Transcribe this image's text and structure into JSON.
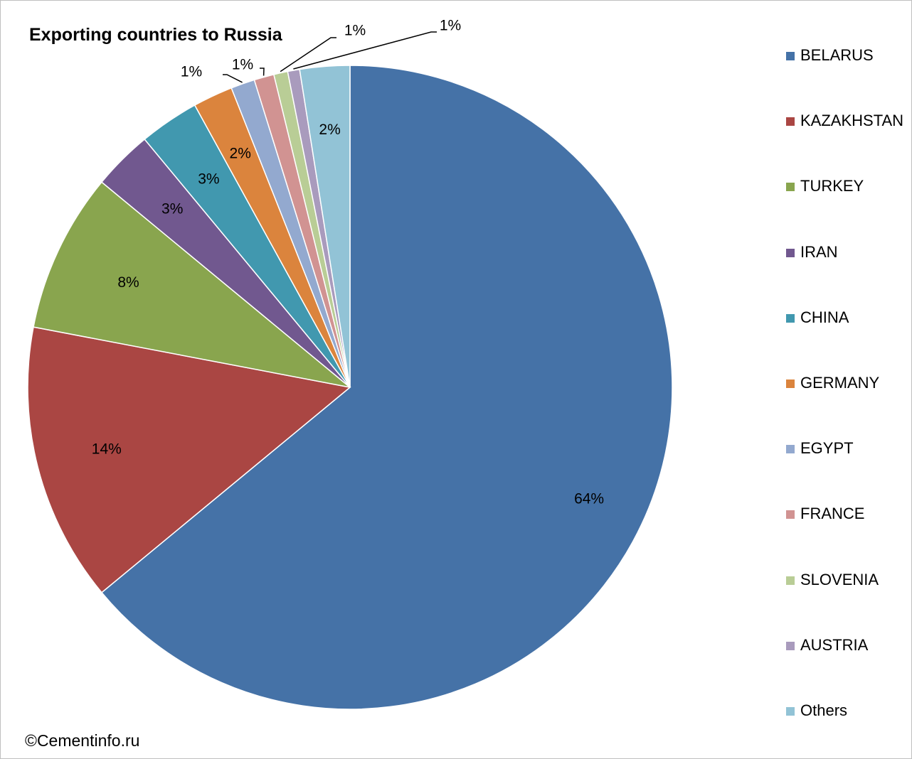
{
  "chart_data": {
    "type": "pie",
    "title": "Exporting countries to Russia",
    "legend_position": "right",
    "slices": [
      {
        "name": "BELARUS",
        "value": 64,
        "label": "64%",
        "color": "#4572A7"
      },
      {
        "name": "KAZAKHSTAN",
        "value": 14,
        "label": "14%",
        "color": "#AA4643"
      },
      {
        "name": "TURKEY",
        "value": 8,
        "label": "8%",
        "color": "#89A54E"
      },
      {
        "name": "IRAN",
        "value": 3,
        "label": "3%",
        "color": "#71588F"
      },
      {
        "name": "CHINA",
        "value": 3,
        "label": "3%",
        "color": "#4198AF"
      },
      {
        "name": "GERMANY",
        "value": 2,
        "label": "2%",
        "color": "#DB843D"
      },
      {
        "name": "EGYPT",
        "value": 1.2,
        "label": "1%",
        "color": "#93A9CF"
      },
      {
        "name": "FRANCE",
        "value": 1,
        "label": "1%",
        "color": "#D19392"
      },
      {
        "name": "SLOVENIA",
        "value": 0.7,
        "label": "1%",
        "color": "#B9CD96"
      },
      {
        "name": "AUSTRIA",
        "value": 0.6,
        "label": "1%",
        "color": "#A99BBD"
      },
      {
        "name": "Others",
        "value": 2.5,
        "label": "2%",
        "color": "#92C3D6"
      }
    ]
  },
  "footer": {
    "copyright": "©Cementinfo.ru"
  }
}
